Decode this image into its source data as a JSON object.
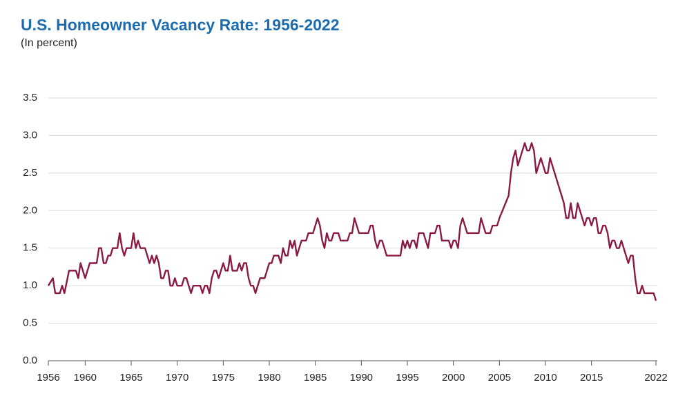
{
  "chart_data": {
    "type": "line",
    "title": "U.S. Homeowner Vacancy Rate: 1956-2022",
    "subtitle": "(In percent)",
    "x": [
      1956.0,
      1956.5,
      1956.75,
      1957.25,
      1957.5,
      1957.75,
      1958.25,
      1959.0,
      1959.25,
      1959.5,
      1960.0,
      1960.5,
      1961.25,
      1961.5,
      1961.75,
      1962.0,
      1962.25,
      1962.5,
      1962.75,
      1963.0,
      1963.5,
      1963.75,
      1964.0,
      1964.25,
      1964.5,
      1965.0,
      1965.25,
      1965.5,
      1965.75,
      1966.0,
      1966.5,
      1967.0,
      1967.25,
      1967.5,
      1967.75,
      1968.0,
      1968.25,
      1968.5,
      1968.75,
      1969.0,
      1969.25,
      1969.5,
      1969.75,
      1970.0,
      1970.5,
      1970.75,
      1971.0,
      1971.5,
      1971.75,
      1972.5,
      1972.75,
      1973.0,
      1973.25,
      1973.5,
      1973.75,
      1974.0,
      1974.25,
      1974.5,
      1975.0,
      1975.25,
      1975.5,
      1975.75,
      1976.0,
      1976.5,
      1976.75,
      1977.0,
      1977.25,
      1977.5,
      1977.75,
      1978.0,
      1978.25,
      1978.5,
      1979.0,
      1979.5,
      1980.0,
      1980.25,
      1980.5,
      1981.0,
      1981.25,
      1981.5,
      1981.75,
      1982.0,
      1982.25,
      1982.5,
      1982.75,
      1983.0,
      1983.5,
      1984.0,
      1984.25,
      1984.75,
      1985.0,
      1985.25,
      1985.5,
      1985.75,
      1986.0,
      1986.25,
      1986.5,
      1986.75,
      1987.0,
      1987.5,
      1987.75,
      1988.5,
      1988.75,
      1989.0,
      1989.25,
      1989.5,
      1989.75,
      1990.75,
      1991.0,
      1991.25,
      1991.5,
      1991.75,
      1992.0,
      1992.25,
      1992.5,
      1992.75,
      1994.25,
      1994.5,
      1994.75,
      1995.0,
      1995.25,
      1995.5,
      1995.75,
      1996.0,
      1996.25,
      1996.75,
      1997.0,
      1997.25,
      1997.5,
      1998.0,
      1998.25,
      1998.5,
      1998.75,
      1999.5,
      1999.75,
      2000.0,
      2000.25,
      2000.5,
      2000.75,
      2001.0,
      2001.25,
      2001.5,
      2002.75,
      2003.0,
      2003.25,
      2003.5,
      2004.0,
      2004.25,
      2004.75,
      2005.0,
      2006.0,
      2006.25,
      2006.5,
      2006.75,
      2007.0,
      2007.5,
      2007.75,
      2008.0,
      2008.25,
      2008.5,
      2008.75,
      2009.0,
      2009.5,
      2009.75,
      2010.0,
      2010.25,
      2010.5,
      2010.75,
      2012.0,
      2012.25,
      2012.5,
      2012.75,
      2013.0,
      2013.25,
      2013.5,
      2014.0,
      2014.25,
      2014.5,
      2014.75,
      2015.0,
      2015.25,
      2015.5,
      2015.75,
      2016.0,
      2016.25,
      2016.5,
      2016.75,
      2017.0,
      2017.25,
      2017.5,
      2017.75,
      2018.0,
      2018.25,
      2018.5,
      2019.0,
      2019.25,
      2019.5,
      2019.75,
      2020.0,
      2020.25,
      2020.5,
      2020.75,
      2021.5,
      2021.75,
      2022.0
    ],
    "series": [
      {
        "color": "#8b1a42",
        "values": [
          1.0,
          1.1,
          0.9,
          0.9,
          1.0,
          0.9,
          1.2,
          1.2,
          1.1,
          1.3,
          1.1,
          1.3,
          1.3,
          1.5,
          1.5,
          1.3,
          1.3,
          1.4,
          1.4,
          1.5,
          1.5,
          1.7,
          1.5,
          1.4,
          1.5,
          1.5,
          1.7,
          1.5,
          1.6,
          1.5,
          1.5,
          1.3,
          1.4,
          1.3,
          1.4,
          1.3,
          1.1,
          1.1,
          1.2,
          1.2,
          1.0,
          1.0,
          1.1,
          1.0,
          1.0,
          1.1,
          1.1,
          0.9,
          1.0,
          1.0,
          0.9,
          1.0,
          1.0,
          0.9,
          1.1,
          1.2,
          1.2,
          1.1,
          1.3,
          1.2,
          1.2,
          1.4,
          1.2,
          1.2,
          1.3,
          1.2,
          1.3,
          1.3,
          1.1,
          1.0,
          1.0,
          0.9,
          1.1,
          1.1,
          1.3,
          1.3,
          1.4,
          1.4,
          1.3,
          1.5,
          1.4,
          1.4,
          1.6,
          1.5,
          1.6,
          1.4,
          1.6,
          1.6,
          1.7,
          1.7,
          1.8,
          1.9,
          1.8,
          1.6,
          1.5,
          1.7,
          1.6,
          1.6,
          1.7,
          1.7,
          1.6,
          1.6,
          1.7,
          1.7,
          1.9,
          1.8,
          1.7,
          1.7,
          1.8,
          1.8,
          1.6,
          1.5,
          1.6,
          1.6,
          1.5,
          1.4,
          1.4,
          1.6,
          1.5,
          1.6,
          1.5,
          1.6,
          1.6,
          1.5,
          1.7,
          1.7,
          1.6,
          1.5,
          1.7,
          1.7,
          1.8,
          1.8,
          1.6,
          1.6,
          1.5,
          1.6,
          1.6,
          1.5,
          1.8,
          1.9,
          1.8,
          1.7,
          1.7,
          1.9,
          1.8,
          1.7,
          1.7,
          1.8,
          1.8,
          1.9,
          2.2,
          2.5,
          2.7,
          2.8,
          2.6,
          2.8,
          2.9,
          2.8,
          2.8,
          2.9,
          2.8,
          2.5,
          2.7,
          2.6,
          2.5,
          2.5,
          2.7,
          2.6,
          2.1,
          1.9,
          1.9,
          2.1,
          1.9,
          1.9,
          2.1,
          1.9,
          1.8,
          1.9,
          1.9,
          1.8,
          1.9,
          1.9,
          1.7,
          1.7,
          1.8,
          1.8,
          1.7,
          1.5,
          1.6,
          1.6,
          1.5,
          1.5,
          1.6,
          1.5,
          1.3,
          1.4,
          1.4,
          1.1,
          0.9,
          0.9,
          1.0,
          0.9,
          0.9,
          0.9,
          0.8
        ]
      }
    ],
    "xlim": [
      1956,
      2022
    ],
    "xticks": [
      1956,
      1960,
      1965,
      1970,
      1975,
      1980,
      1985,
      1990,
      1995,
      2000,
      2005,
      2010,
      2015,
      2022
    ],
    "ylim": [
      0,
      3.5
    ],
    "yticks": [
      {
        "value": 0,
        "label": "0.0"
      },
      0.5,
      {
        "value": 1,
        "label": "1.0"
      },
      1.5,
      {
        "value": 2,
        "label": "2.0"
      },
      2.5,
      {
        "value": 3,
        "label": "3.0"
      },
      3.5
    ],
    "grid": true
  }
}
